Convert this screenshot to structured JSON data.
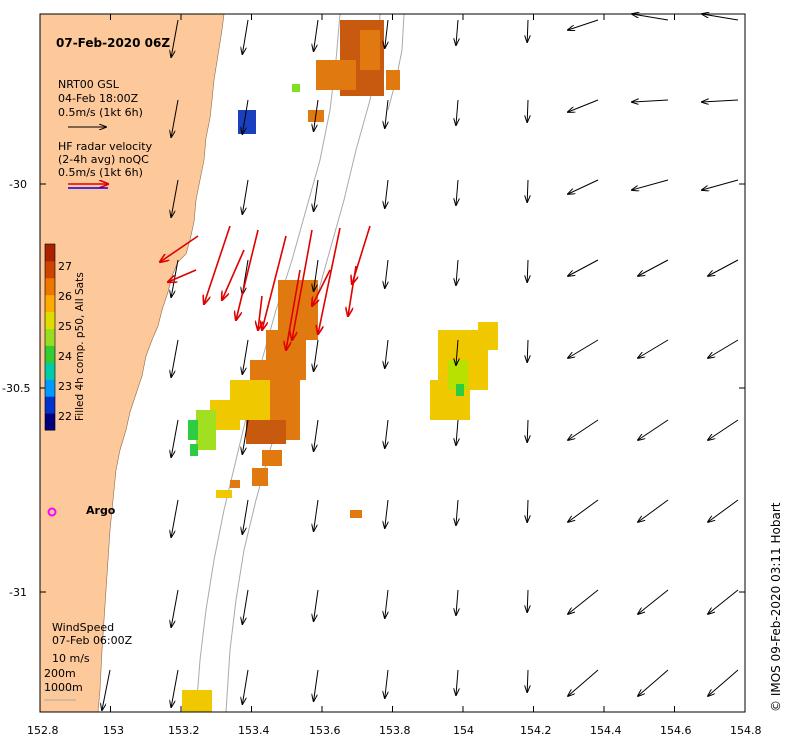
{
  "title": "07-Feb-2020 06Z",
  "legend": {
    "model_name": "NRT00 GSL",
    "model_time": "04-Feb 18:00Z",
    "model_scale": "0.5m/s (1kt 6h)",
    "radar_line1": "HF radar velocity",
    "radar_line2": "(2-4h avg) noQC",
    "radar_scale": "0.5m/s (1kt 6h)",
    "wind_title": "WindSpeed",
    "wind_time": "07-Feb 06:00Z",
    "wind_scale": "10 m/s",
    "isobath_1": "200m",
    "isobath_2": "1000m"
  },
  "argo_label": "Argo",
  "colorbar": {
    "label": "Filled 4h comp. p50, All Sats",
    "ticks": [
      "27",
      "26",
      "25",
      "24",
      "23",
      "22"
    ],
    "colors": [
      "#00007f",
      "#0033cc",
      "#0099ff",
      "#00ccaa",
      "#33cc33",
      "#99dd22",
      "#dddd00",
      "#ffaa00",
      "#ee7700",
      "#cc4400",
      "#aa2200"
    ]
  },
  "x_ticks": [
    "152.8",
    "153",
    "153.2",
    "153.4",
    "153.6",
    "153.8",
    "154",
    "154.2",
    "154.4",
    "154.6",
    "154.8"
  ],
  "y_ticks": [
    "-30",
    "-30.5",
    "-31"
  ],
  "credit": "©  IMOS 09-Feb-2020 03:11 Hobart",
  "colors": {
    "land": "#fdc89a",
    "radar": "#e00000",
    "argo": "#ff00ff",
    "isobath": "#aaaaaa"
  }
}
